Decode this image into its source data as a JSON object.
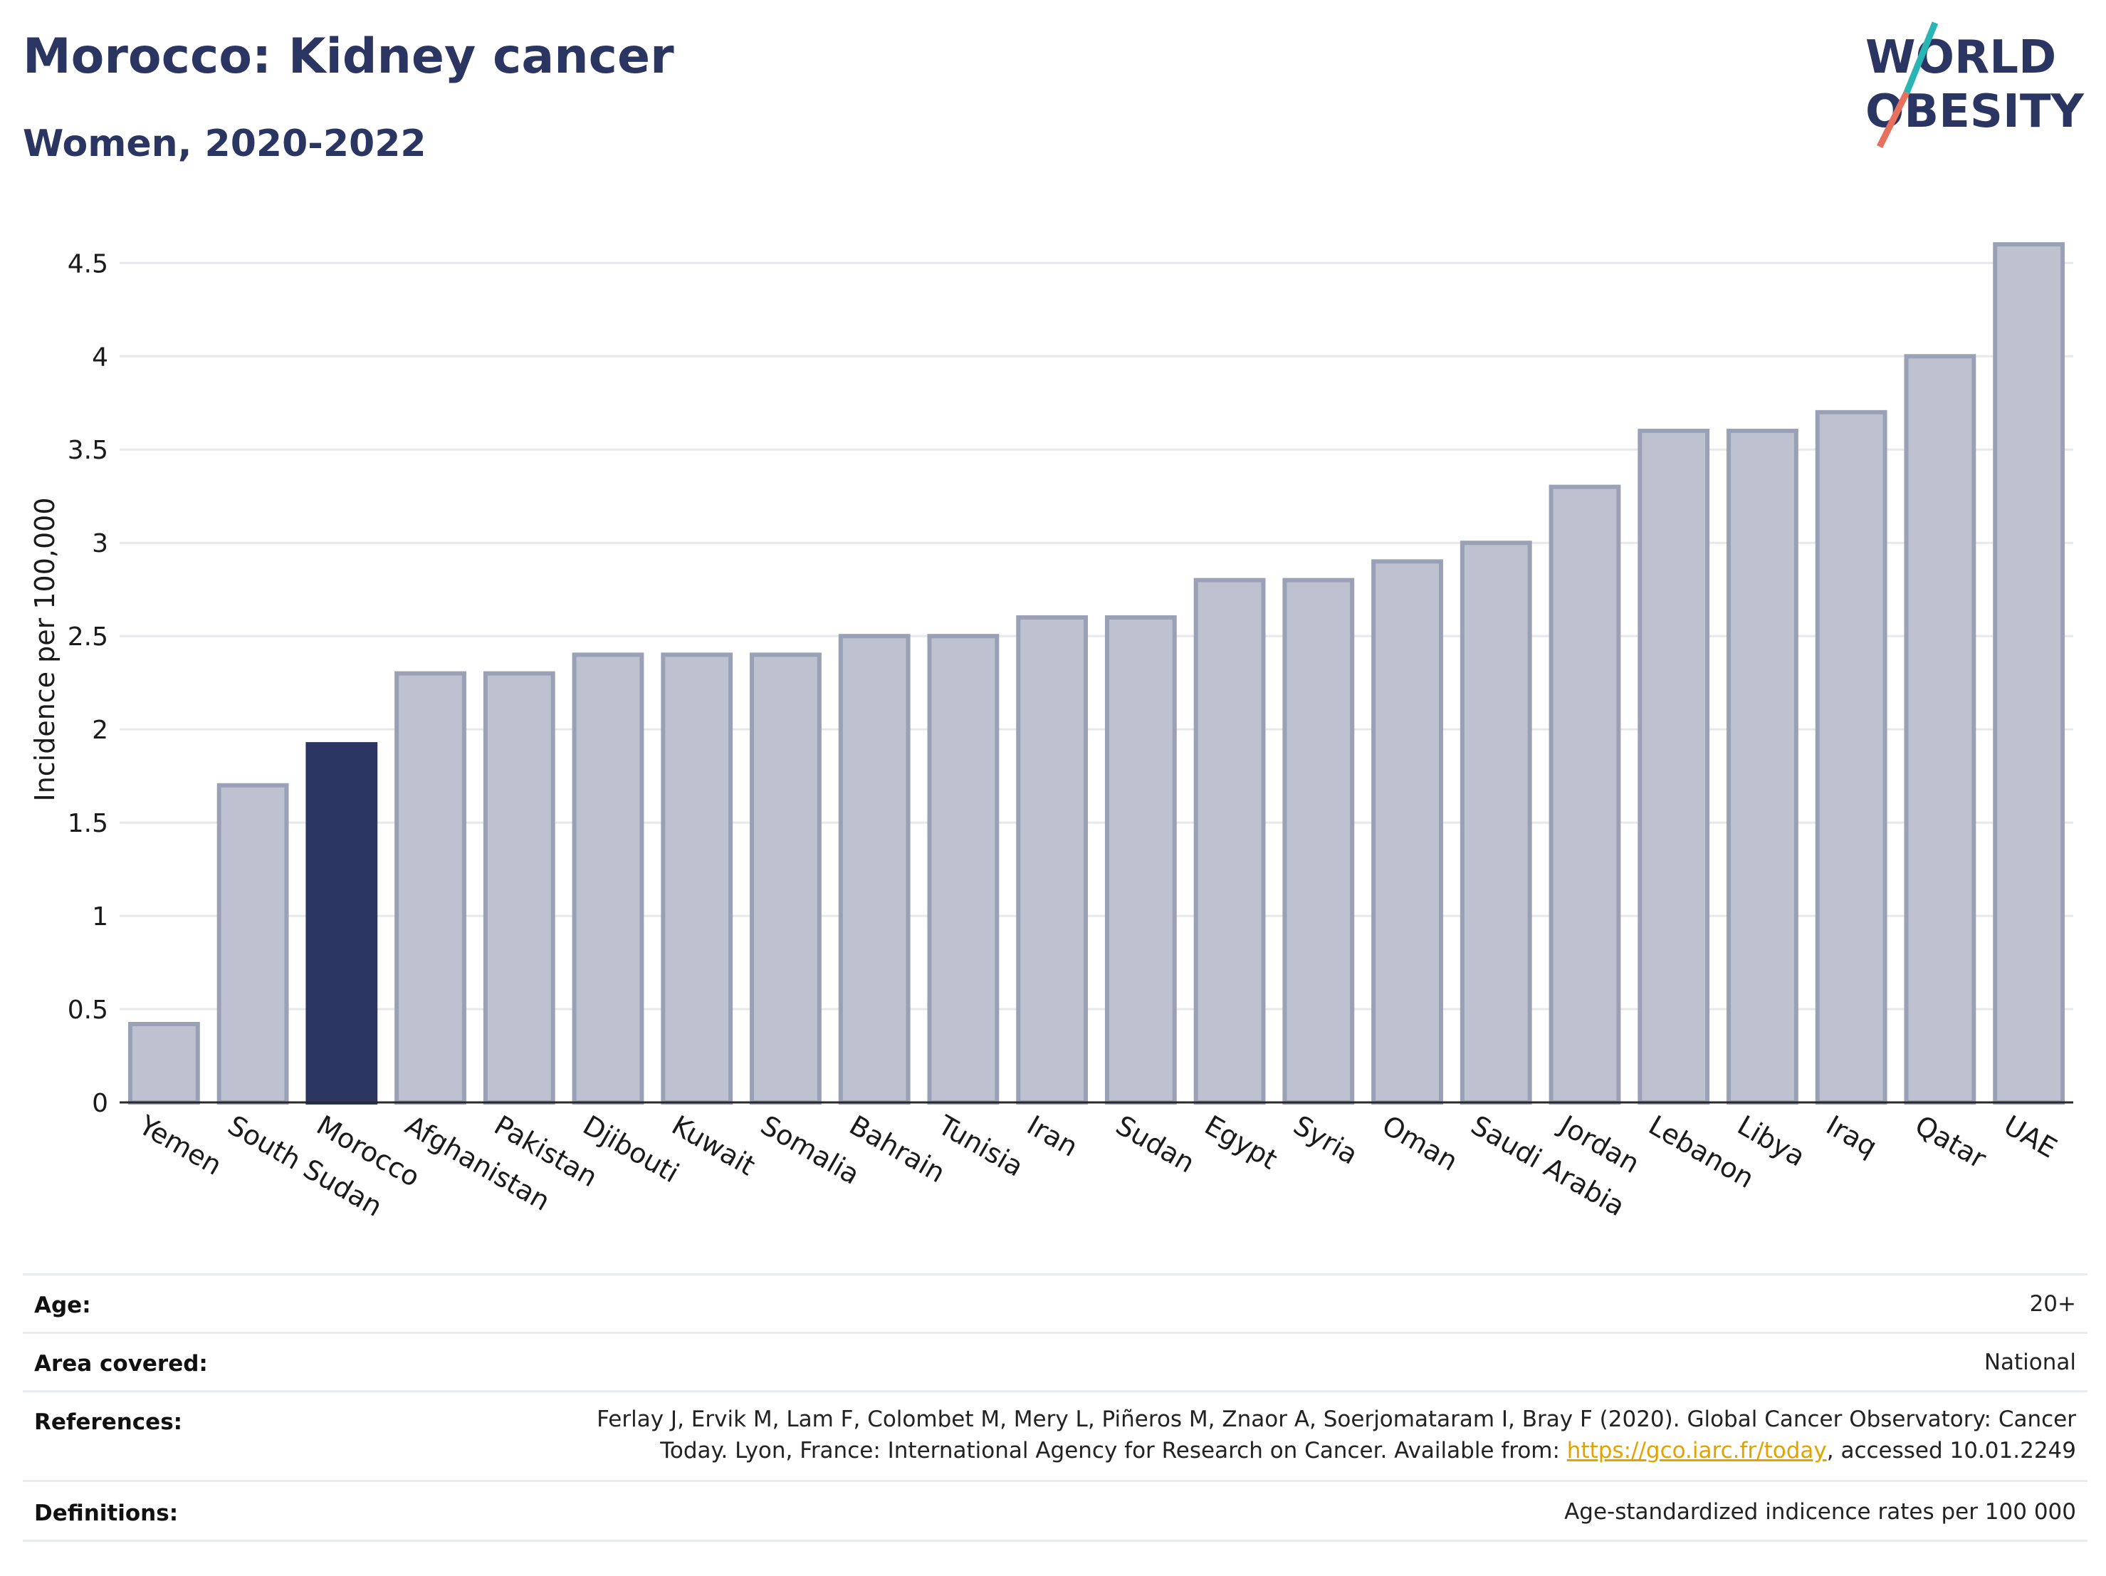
{
  "title": "Morocco: Kidney cancer",
  "subtitle": "Women, 2020-2022",
  "logo": {
    "line1_pre": "W",
    "line1_post": "RLD",
    "line2_pre": "",
    "line2_post": "BESITY",
    "ring_letter": "O"
  },
  "colors": {
    "highlight": "#2b3562",
    "bar": "#bec1cf",
    "bar_stroke": "#9aa0b5",
    "title": "#2b3562",
    "slash_teal": "#2ab5b5",
    "slash_coral": "#e8705c"
  },
  "chart_data": {
    "type": "bar",
    "categories": [
      "Yemen",
      "South Sudan",
      "Morocco",
      "Afghanistan",
      "Pakistan",
      "Djibouti",
      "Kuwait",
      "Somalia",
      "Bahrain",
      "Tunisia",
      "Iran",
      "Sudan",
      "Egypt",
      "Syria",
      "Oman",
      "Saudi Arabia",
      "Jordan",
      "Lebanon",
      "Libya",
      "Iraq",
      "Qatar",
      "UAE"
    ],
    "values": [
      0.42,
      1.7,
      1.92,
      2.3,
      2.3,
      2.4,
      2.4,
      2.4,
      2.5,
      2.5,
      2.6,
      2.6,
      2.8,
      2.8,
      2.9,
      3.0,
      3.3,
      3.6,
      3.6,
      3.7,
      4.0,
      4.6
    ],
    "highlight": "Morocco",
    "ylabel": "Incidence per 100,000",
    "yticks": [
      0,
      0.5,
      1,
      1.5,
      2,
      2.5,
      3,
      3.5,
      4,
      4.5
    ],
    "ytick_labels": [
      "0",
      "0.5",
      "1",
      "1.5",
      "2",
      "2.5",
      "3",
      "3.5",
      "4",
      "4.5"
    ],
    "ylim": [
      0,
      4.65
    ],
    "grid": true
  },
  "info": {
    "age_label": "Age:",
    "age_value": "20+",
    "area_label": "Area covered:",
    "area_value": "National",
    "refs_label": "References:",
    "refs_line1": "Ferlay J, Ervik M, Lam F, Colombet M, Mery L, Piñeros M, Znaor A, Soerjomataram I, Bray F (2020). Global Cancer Observatory: Cancer",
    "refs_line2_pre": "Today. Lyon, France: International Agency for Research on Cancer. Available from: ",
    "refs_link": "https://gco.iarc.fr/today",
    "refs_line2_post": ", accessed 10.01.2249",
    "defs_label": "Definitions:",
    "defs_value": "Age-standardized indicence rates per 100 000"
  }
}
